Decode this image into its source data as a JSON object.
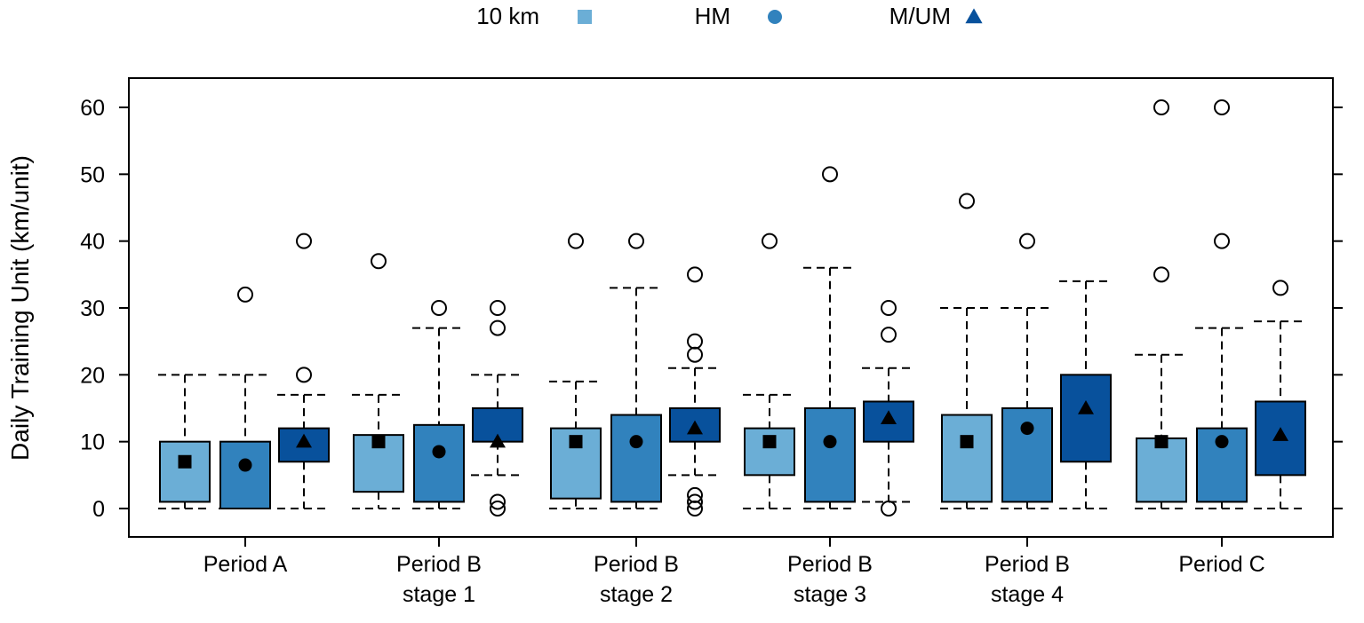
{
  "chart_data": {
    "type": "box",
    "title": "",
    "xlabel": "",
    "ylabel": "Daily Training Unit (km/unit)",
    "ylim": [
      0,
      60
    ],
    "yticks": [
      0,
      10,
      20,
      30,
      40,
      50,
      60
    ],
    "legend_placement": "top-center",
    "series": [
      {
        "name": "10 km",
        "color": "#6baed6",
        "marker": "square"
      },
      {
        "name": "HM",
        "color": "#3182bd",
        "marker": "circle"
      },
      {
        "name": "M/UM",
        "color": "#08519c",
        "marker": "triangle"
      }
    ],
    "categories": [
      {
        "line1": "Period A",
        "line2": ""
      },
      {
        "line1": "Period B",
        "line2": "stage 1"
      },
      {
        "line1": "Period B",
        "line2": "stage 2"
      },
      {
        "line1": "Period B",
        "line2": "stage 3"
      },
      {
        "line1": "Period B",
        "line2": "stage 4"
      },
      {
        "line1": "Period C",
        "line2": ""
      }
    ],
    "boxes": [
      [
        {
          "q1": 1,
          "q3": 10,
          "lo": 0,
          "hi": 20,
          "mean": 7,
          "out": []
        },
        {
          "q1": 0,
          "q3": 10,
          "lo": 0,
          "hi": 20,
          "mean": 6.5,
          "out": [
            32
          ]
        },
        {
          "q1": 7,
          "q3": 12,
          "lo": 0,
          "hi": 17,
          "mean": 10,
          "out": [
            20,
            40
          ]
        }
      ],
      [
        {
          "q1": 2.5,
          "q3": 11,
          "lo": 0,
          "hi": 17,
          "mean": 10,
          "out": [
            37
          ]
        },
        {
          "q1": 1,
          "q3": 12.5,
          "lo": 0,
          "hi": 27,
          "mean": 8.5,
          "out": [
            30
          ]
        },
        {
          "q1": 10,
          "q3": 15,
          "lo": 5,
          "hi": 20,
          "mean": 10,
          "out": [
            27,
            30,
            0,
            1
          ]
        }
      ],
      [
        {
          "q1": 1.5,
          "q3": 12,
          "lo": 0,
          "hi": 19,
          "mean": 10,
          "out": [
            40
          ]
        },
        {
          "q1": 1,
          "q3": 14,
          "lo": 0,
          "hi": 33,
          "mean": 10,
          "out": [
            40
          ]
        },
        {
          "q1": 10,
          "q3": 15,
          "lo": 5,
          "hi": 21,
          "mean": 12,
          "out": [
            35,
            25,
            23,
            2,
            1,
            0
          ]
        }
      ],
      [
        {
          "q1": 5,
          "q3": 12,
          "lo": 0,
          "hi": 17,
          "mean": 10,
          "out": [
            40
          ]
        },
        {
          "q1": 1,
          "q3": 15,
          "lo": 0,
          "hi": 36,
          "mean": 10,
          "out": [
            50
          ]
        },
        {
          "q1": 10,
          "q3": 16,
          "lo": 1,
          "hi": 21,
          "mean": 13.5,
          "out": [
            30,
            26,
            0
          ]
        }
      ],
      [
        {
          "q1": 1,
          "q3": 14,
          "lo": 0,
          "hi": 30,
          "mean": 10,
          "out": [
            46
          ]
        },
        {
          "q1": 1,
          "q3": 15,
          "lo": 0,
          "hi": 30,
          "mean": 12,
          "out": [
            40
          ]
        },
        {
          "q1": 7,
          "q3": 20,
          "lo": 0,
          "hi": 34,
          "mean": 15,
          "out": []
        }
      ],
      [
        {
          "q1": 1,
          "q3": 10.5,
          "lo": 0,
          "hi": 23,
          "mean": 10,
          "out": [
            35,
            60
          ]
        },
        {
          "q1": 1,
          "q3": 12,
          "lo": 0,
          "hi": 27,
          "mean": 10,
          "out": [
            40,
            60
          ]
        },
        {
          "q1": 5,
          "q3": 16,
          "lo": 0,
          "hi": 28,
          "mean": 11,
          "out": [
            33
          ]
        }
      ]
    ]
  }
}
